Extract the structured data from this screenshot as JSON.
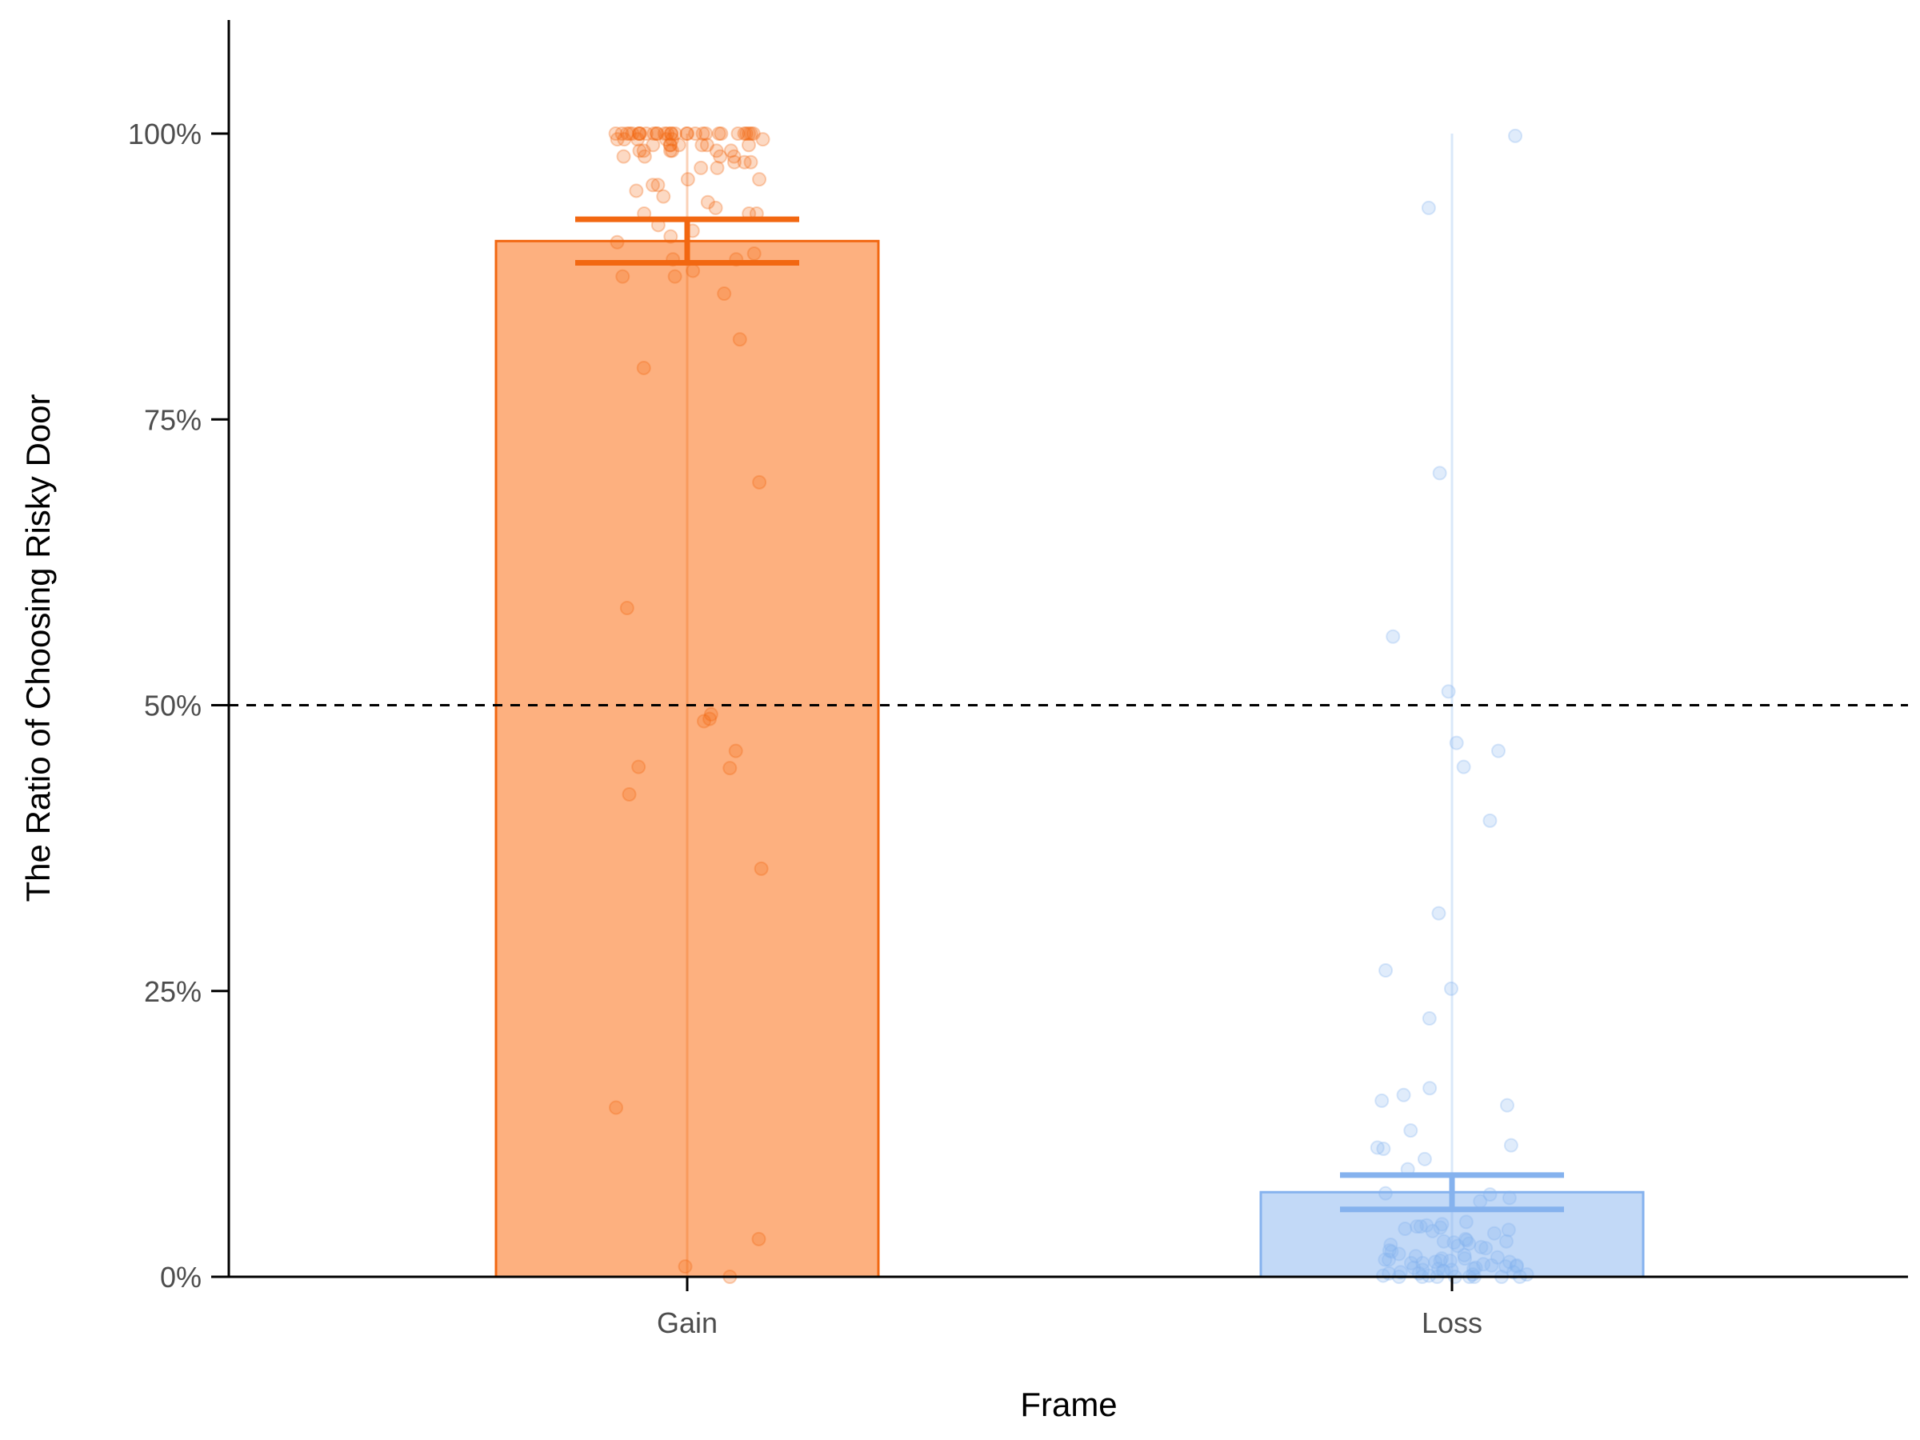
{
  "chart_data": {
    "type": "bar",
    "title": "",
    "xlabel": "Frame",
    "ylabel": "The Ratio of Choosing Risky Door",
    "categories": [
      "Gain",
      "Loss"
    ],
    "values": [
      90.6,
      7.4
    ],
    "error_bars": [
      {
        "category": "Gain",
        "lower": 88.7,
        "upper": 92.5
      },
      {
        "category": "Loss",
        "lower": 5.9,
        "upper": 8.9
      }
    ],
    "ylim": [
      0,
      110
    ],
    "yticks": [
      0,
      25,
      50,
      75,
      100
    ],
    "ytick_labels": [
      "0%",
      "25%",
      "50%",
      "75%",
      "100%"
    ],
    "reference_line": {
      "y": 50,
      "style": "dashed",
      "color": "#000000"
    },
    "grid": false,
    "legend": "none",
    "colors": {
      "Gain": {
        "fill": "#fdb07f",
        "edge": "#f26711"
      },
      "Loss": {
        "fill": "#c2d9f7",
        "edge": "#85b2ee"
      }
    },
    "points": {
      "Gain": [
        100,
        100,
        100,
        100,
        100,
        100,
        100,
        100,
        100,
        100,
        100,
        100,
        100,
        100,
        100,
        100,
        100,
        100,
        100,
        100,
        100,
        100,
        100,
        100,
        100,
        100,
        100,
        100,
        100,
        100,
        99.5,
        99.5,
        99.5,
        99.5,
        99.5,
        99.5,
        99,
        99,
        99,
        99,
        99,
        99,
        99,
        98.5,
        98.5,
        98.5,
        98.5,
        98.5,
        98.5,
        98,
        98,
        98,
        98,
        97.5,
        97.5,
        97.5,
        97,
        97,
        96,
        96,
        95.5,
        95.5,
        95,
        94.5,
        94,
        93.5,
        93,
        93,
        93,
        92,
        91.5,
        91,
        90.5,
        89.5,
        89,
        89,
        88,
        87.5,
        87.5,
        86,
        82,
        79.5,
        69.5,
        58.5,
        49.2,
        48.8,
        48.6,
        46,
        44.6,
        44.5,
        42.2,
        35.7,
        14.8,
        3.3,
        0.9,
        0
      ],
      "Loss": [
        99.8,
        93.5,
        70.3,
        56,
        51.2,
        46.7,
        46,
        44.6,
        39.9,
        31.8,
        26.8,
        25.2,
        22.6,
        16.5,
        15.9,
        15.4,
        15,
        12.8,
        11.5,
        11.3,
        11.2,
        10.3,
        9.4,
        7.3,
        7.2,
        6.9,
        6.6,
        4.8,
        4.6,
        4.5,
        4.4,
        4.4,
        4.3,
        4.2,
        4.1,
        4,
        3.8,
        3.3,
        3.2,
        3.1,
        3.1,
        3,
        2.9,
        2.8,
        2.7,
        2.6,
        2.5,
        2.3,
        2.2,
        2,
        1.9,
        1.8,
        1.7,
        1.6,
        1.6,
        1.5,
        1.5,
        1.4,
        1.4,
        1.3,
        1.3,
        1.2,
        1.2,
        1.1,
        1,
        1,
        0.9,
        0.9,
        0.8,
        0.8,
        0.7,
        0.7,
        0.6,
        0.6,
        0.5,
        0.5,
        0.4,
        0.4,
        0.3,
        0.3,
        0.2,
        0.2,
        0.1,
        0.1,
        0,
        0,
        0,
        0,
        0,
        0,
        0,
        0
      ]
    }
  }
}
